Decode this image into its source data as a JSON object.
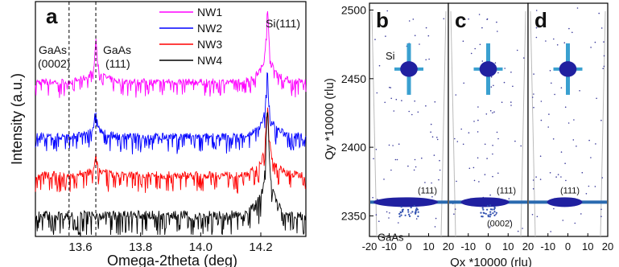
{
  "chart_data": [
    {
      "panel": "a",
      "type": "line",
      "xlabel": "Omega-2theta (deg)",
      "ylabel": "Intensity (a.u.)",
      "xlim": [
        13.45,
        14.35
      ],
      "x_ticks": [
        "13.6",
        "13.8",
        "14.0",
        "14.2"
      ],
      "x_tick_values": [
        13.6,
        13.8,
        14.0,
        14.2
      ],
      "legend_position": "top-center",
      "series": [
        {
          "name": "NW1",
          "color": "#ff00ff",
          "peaks": [
            {
              "x": 13.651,
              "height": 0.55
            },
            {
              "x": 14.222,
              "height": 0.95
            }
          ],
          "baseline": 0.35
        },
        {
          "name": "NW2",
          "color": "#0000ff",
          "peaks": [
            {
              "x": 13.651,
              "height": 0.35
            },
            {
              "x": 14.222,
              "height": 0.8
            }
          ],
          "baseline": 0.32
        },
        {
          "name": "NW3",
          "color": "#ff0000",
          "peaks": [
            {
              "x": 13.651,
              "height": 0.25
            },
            {
              "x": 14.222,
              "height": 0.85
            }
          ],
          "baseline": 0.3
        },
        {
          "name": "NW4",
          "color": "#000000",
          "peaks": [
            {
              "x": 14.222,
              "height": 1.0
            }
          ],
          "baseline": 0.22
        }
      ],
      "reference_lines": [
        13.562,
        13.651
      ],
      "annotations": [
        {
          "text": "GaAs",
          "sub": "(0002)"
        },
        {
          "text": "GaAs",
          "sub": "(111)"
        },
        {
          "text": "Si(111)",
          "sub": ""
        }
      ]
    },
    {
      "type": "heatmap",
      "panels": [
        "b",
        "c",
        "d"
      ],
      "xlabel": "Qx *10000 (rlu)",
      "ylabel": "Qy *10000 (rlu)",
      "xlim": [
        -20,
        20
      ],
      "ylim": [
        2335,
        2505
      ],
      "x_ticks": [
        -20,
        -10,
        0,
        10,
        20
      ],
      "y_ticks": [
        2350,
        2400,
        2450,
        2500
      ],
      "si_peak": {
        "qx": 0,
        "qy": 2457
      },
      "gaas_peak": {
        "qx": 0,
        "qy": 2360
      },
      "labels": {
        "si": "Si",
        "gaas": "GaAs",
        "gaas_111": "(111)",
        "gaas_0002": "(0002)"
      }
    }
  ]
}
